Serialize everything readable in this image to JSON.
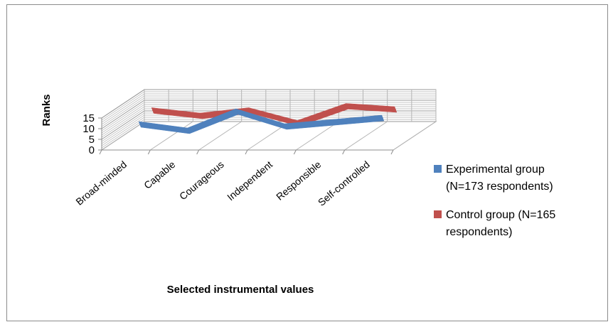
{
  "chart_data": {
    "type": "line",
    "title": "",
    "xlabel": "Selected instrumental values",
    "ylabel": "Ranks",
    "ylim": [
      0,
      15
    ],
    "yticks": [
      0,
      5,
      10,
      15
    ],
    "categories": [
      "Broad-minded",
      "Capable",
      "Courageous",
      "Independent",
      "Responsible",
      "Self-controlled"
    ],
    "series": [
      {
        "name": "Control group (N=165 respondents)",
        "legend_lines": [
          "Control group (N=165",
          "respondents)"
        ],
        "color": "#c0504d",
        "values": [
          10.5,
          8,
          10.5,
          4.5,
          12.5,
          11
        ]
      },
      {
        "name": "Experimental group (N=173 respondents)",
        "legend_lines": [
          "Experimental group",
          "(N=173 respondents)"
        ],
        "color": "#4f81bd",
        "values": [
          8,
          5,
          14,
          7,
          9,
          11
        ]
      }
    ],
    "legend_position": "right",
    "legend_order": [
      1,
      0
    ],
    "grid": true,
    "style": "3d"
  }
}
